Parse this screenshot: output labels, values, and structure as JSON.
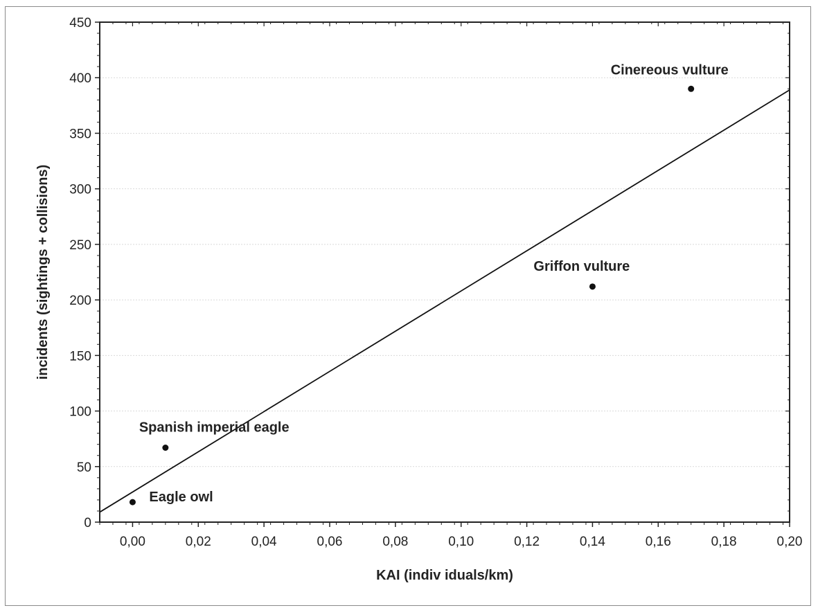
{
  "chart_data": {
    "type": "scatter",
    "title": "",
    "xlabel": "KAI (indiv iduals/km)",
    "ylabel": "incidents (sightings + collisions)",
    "xlim": [
      -0.01,
      0.2
    ],
    "ylim": [
      0,
      450
    ],
    "grid": true,
    "x_ticks": [
      0.0,
      0.02,
      0.04,
      0.06,
      0.08,
      0.1,
      0.12,
      0.14,
      0.16,
      0.18,
      0.2
    ],
    "x_tick_labels": [
      "0,00",
      "0,02",
      "0,04",
      "0,06",
      "0,08",
      "0,10",
      "0,12",
      "0,14",
      "0,16",
      "0,18",
      "0,20"
    ],
    "y_ticks": [
      0,
      50,
      100,
      150,
      200,
      250,
      300,
      350,
      400,
      450
    ],
    "y_tick_labels": [
      "0",
      "50",
      "100",
      "150",
      "200",
      "250",
      "300",
      "350",
      "400",
      "450"
    ],
    "points": [
      {
        "label": "Eagle owl",
        "x": 0.0,
        "y": 18
      },
      {
        "label": "Spanish imperial eagle",
        "x": 0.01,
        "y": 67
      },
      {
        "label": "Griffon vulture",
        "x": 0.14,
        "y": 212
      },
      {
        "label": "Cinereous vulture",
        "x": 0.17,
        "y": 390
      }
    ],
    "regression_line": {
      "x": [
        -0.01,
        0.2
      ],
      "y": [
        9,
        389
      ]
    }
  },
  "colors": {
    "points": "#111111",
    "line": "#111111",
    "grid": "#d9d9d9",
    "text": "#222222"
  }
}
